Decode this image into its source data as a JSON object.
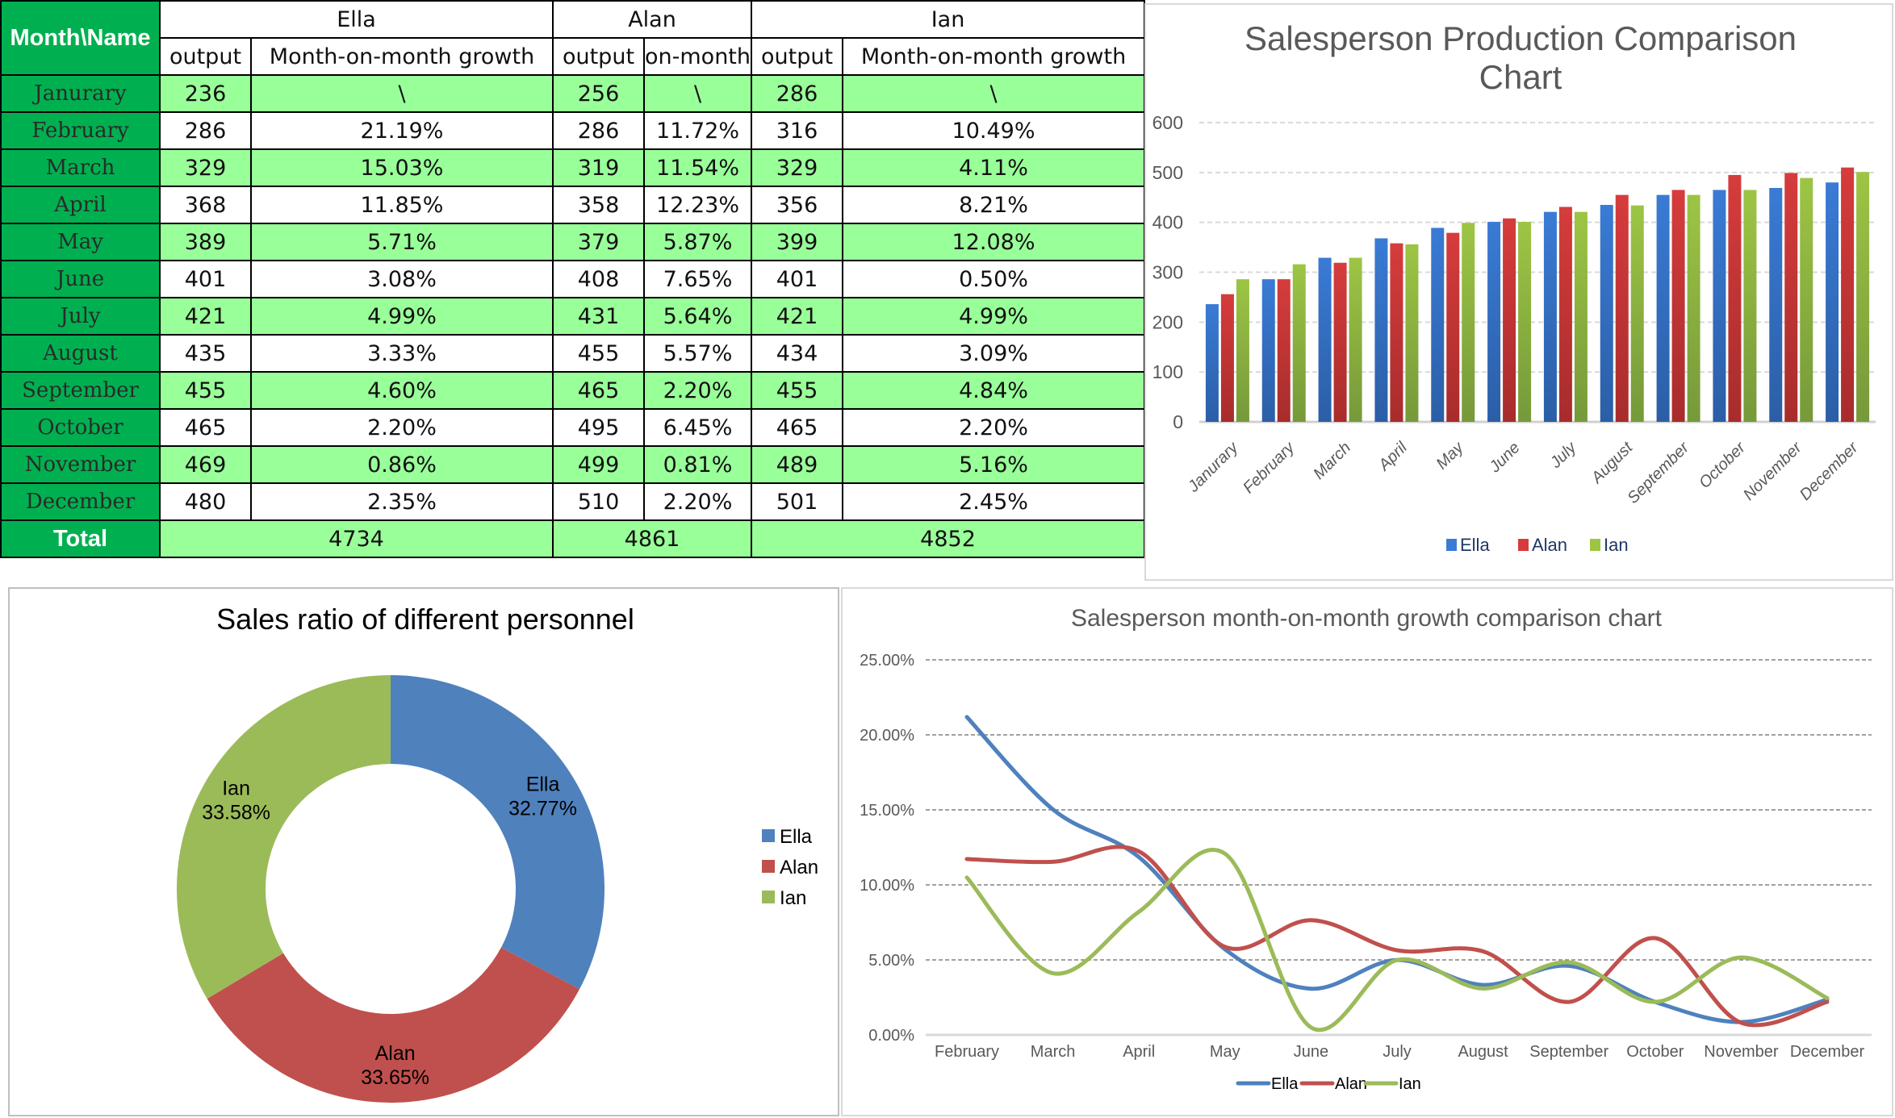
{
  "table": {
    "corner_label": "Month\\Name",
    "people": [
      "Ella",
      "Alan",
      "Ian"
    ],
    "subheaders": {
      "Ella": [
        "output",
        "Month-on-month growth"
      ],
      "Alan": [
        "output",
        "on-month"
      ],
      "Ian": [
        "output",
        "Month-on-month growth"
      ]
    },
    "rows": [
      {
        "month": "Janurary",
        "ella_output": "236",
        "ella_growth": "\\",
        "alan_output": "256",
        "alan_growth": "\\",
        "ian_output": "286",
        "ian_growth": "\\"
      },
      {
        "month": "February",
        "ella_output": "286",
        "ella_growth": "21.19%",
        "alan_output": "286",
        "alan_growth": "11.72%",
        "ian_output": "316",
        "ian_growth": "10.49%"
      },
      {
        "month": "March",
        "ella_output": "329",
        "ella_growth": "15.03%",
        "alan_output": "319",
        "alan_growth": "11.54%",
        "ian_output": "329",
        "ian_growth": "4.11%"
      },
      {
        "month": "April",
        "ella_output": "368",
        "ella_growth": "11.85%",
        "alan_output": "358",
        "alan_growth": "12.23%",
        "ian_output": "356",
        "ian_growth": "8.21%"
      },
      {
        "month": "May",
        "ella_output": "389",
        "ella_growth": "5.71%",
        "alan_output": "379",
        "alan_growth": "5.87%",
        "ian_output": "399",
        "ian_growth": "12.08%"
      },
      {
        "month": "June",
        "ella_output": "401",
        "ella_growth": "3.08%",
        "alan_output": "408",
        "alan_growth": "7.65%",
        "ian_output": "401",
        "ian_growth": "0.50%"
      },
      {
        "month": "July",
        "ella_output": "421",
        "ella_growth": "4.99%",
        "alan_output": "431",
        "alan_growth": "5.64%",
        "ian_output": "421",
        "ian_growth": "4.99%"
      },
      {
        "month": "August",
        "ella_output": "435",
        "ella_growth": "3.33%",
        "alan_output": "455",
        "alan_growth": "5.57%",
        "ian_output": "434",
        "ian_growth": "3.09%"
      },
      {
        "month": "September",
        "ella_output": "455",
        "ella_growth": "4.60%",
        "alan_output": "465",
        "alan_growth": "2.20%",
        "ian_output": "455",
        "ian_growth": "4.84%"
      },
      {
        "month": "October",
        "ella_output": "465",
        "ella_growth": "2.20%",
        "alan_output": "495",
        "alan_growth": "6.45%",
        "ian_output": "465",
        "ian_growth": "2.20%"
      },
      {
        "month": "November",
        "ella_output": "469",
        "ella_growth": "0.86%",
        "alan_output": "499",
        "alan_growth": "0.81%",
        "ian_output": "489",
        "ian_growth": "5.16%"
      },
      {
        "month": "December",
        "ella_output": "480",
        "ella_growth": "2.35%",
        "alan_output": "510",
        "alan_growth": "2.20%",
        "ian_output": "501",
        "ian_growth": "2.45%"
      }
    ],
    "total": {
      "label": "Total",
      "ella": "4734",
      "alan": "4861",
      "ian": "4852"
    }
  },
  "colors": {
    "ella": "#4f81bd",
    "alan": "#c0504d",
    "ian": "#9bbb59",
    "bar_ella": "#3a7bd5",
    "bar_alan": "#d63c3c",
    "bar_ian": "#9dc544",
    "header_green": "#00b050",
    "row_green": "#99ff99"
  },
  "chart_data": [
    {
      "type": "bar",
      "title": "Salesperson Production Comparison Chart",
      "title_lines": [
        "Salesperson Production Comparison",
        "Chart"
      ],
      "xlabel": "",
      "ylabel": "",
      "categories": [
        "Janurary",
        "February",
        "March",
        "April",
        "May",
        "June",
        "July",
        "August",
        "September",
        "October",
        "November",
        "December"
      ],
      "series": [
        {
          "name": "Ella",
          "values": [
            236,
            286,
            329,
            368,
            389,
            401,
            421,
            435,
            455,
            465,
            469,
            480
          ]
        },
        {
          "name": "Alan",
          "values": [
            256,
            286,
            319,
            358,
            379,
            408,
            431,
            455,
            465,
            495,
            499,
            510
          ]
        },
        {
          "name": "Ian",
          "values": [
            286,
            316,
            329,
            356,
            399,
            401,
            421,
            434,
            455,
            465,
            489,
            501
          ]
        }
      ],
      "ylim": [
        0,
        600
      ],
      "yticks": [
        0,
        100,
        200,
        300,
        400,
        500,
        600
      ],
      "ytick_labels": [
        "0",
        "100",
        "200",
        "300",
        "400",
        "500",
        "600"
      ],
      "grid": true,
      "legend": "bottom"
    },
    {
      "type": "pie",
      "subtype": "donut",
      "title": "Sales ratio of different personnel",
      "categories": [
        "Ella",
        "Alan",
        "Ian"
      ],
      "values": [
        4734,
        4861,
        4852
      ],
      "percent_labels": [
        "32.77%",
        "33.65%",
        "33.58%"
      ],
      "legend": "right"
    },
    {
      "type": "line",
      "title": "Salesperson month-on-month growth comparison chart",
      "xlabel": "",
      "ylabel": "",
      "categories": [
        "February",
        "March",
        "April",
        "May",
        "June",
        "July",
        "August",
        "September",
        "October",
        "November",
        "December"
      ],
      "series": [
        {
          "name": "Ella",
          "values": [
            21.19,
            15.03,
            11.85,
            5.71,
            3.08,
            4.99,
            3.33,
            4.6,
            2.2,
            0.86,
            2.35
          ]
        },
        {
          "name": "Alan",
          "values": [
            11.72,
            11.54,
            12.23,
            5.87,
            7.65,
            5.64,
            5.57,
            2.2,
            6.45,
            0.81,
            2.2
          ]
        },
        {
          "name": "Ian",
          "values": [
            10.49,
            4.11,
            8.21,
            12.08,
            0.5,
            4.99,
            3.09,
            4.84,
            2.2,
            5.16,
            2.45
          ]
        }
      ],
      "ylim": [
        0,
        25
      ],
      "yticks": [
        0,
        5,
        10,
        15,
        20,
        25
      ],
      "ytick_labels": [
        "0.00%",
        "5.00%",
        "10.00%",
        "15.00%",
        "20.00%",
        "25.00%"
      ],
      "smoothed": true,
      "grid": true,
      "legend": "bottom"
    }
  ]
}
